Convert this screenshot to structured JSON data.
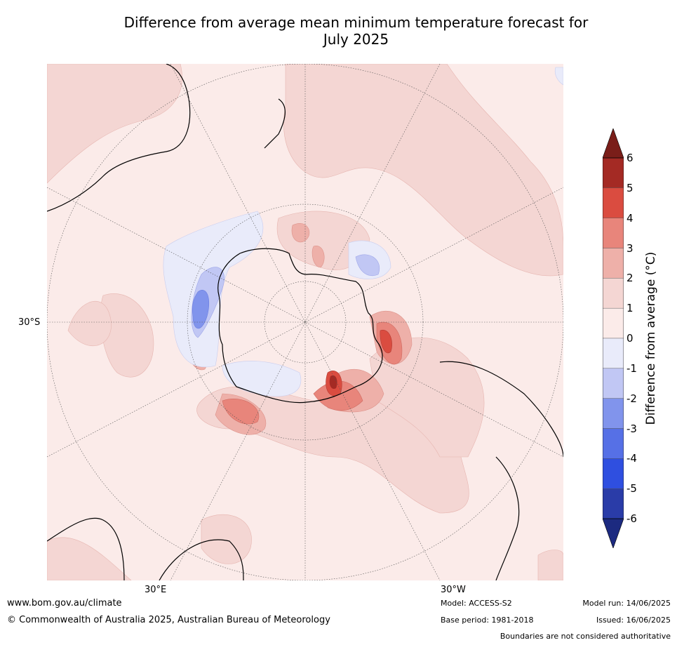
{
  "title": "Difference from average mean minimum temperature forecast for July 2025",
  "title_line1": "Difference from average mean minimum temperature forecast for",
  "title_line2": "July 2025",
  "map": {
    "lat_label": "30°S",
    "lon_labels": [
      "30°E",
      "30°W"
    ],
    "land_color": "#fbebe9",
    "ocean_base_color": "#fbebe9"
  },
  "colorbar": {
    "label": "Difference from average (°C)",
    "ticks": [
      "6",
      "5",
      "4",
      "3",
      "2",
      "1",
      "0",
      "-1",
      "-2",
      "-3",
      "-4",
      "-5",
      "-6"
    ],
    "colors": [
      "#a42a24",
      "#da4c40",
      "#e8857b",
      "#eeb0a9",
      "#f4d6d3",
      "#fbebe9",
      "#e9ebfa",
      "#c1c7f4",
      "#8194ec",
      "#5670e6",
      "#2f4fe0",
      "#2a3ca8"
    ],
    "over_color": "#7a1e19",
    "under_color": "#1c2a80"
  },
  "footer": {
    "url": "www.bom.gov.au/climate",
    "copyright": "© Commonwealth of Australia 2025, Australian Bureau of Meteorology",
    "model": "Model: ACCESS-S2",
    "base_period": "Base period: 1981-2018",
    "model_run": "Model run: 14/06/2025",
    "issued": "Issued: 16/06/2025",
    "disclaimer": "Boundaries are not considered authoritative"
  }
}
